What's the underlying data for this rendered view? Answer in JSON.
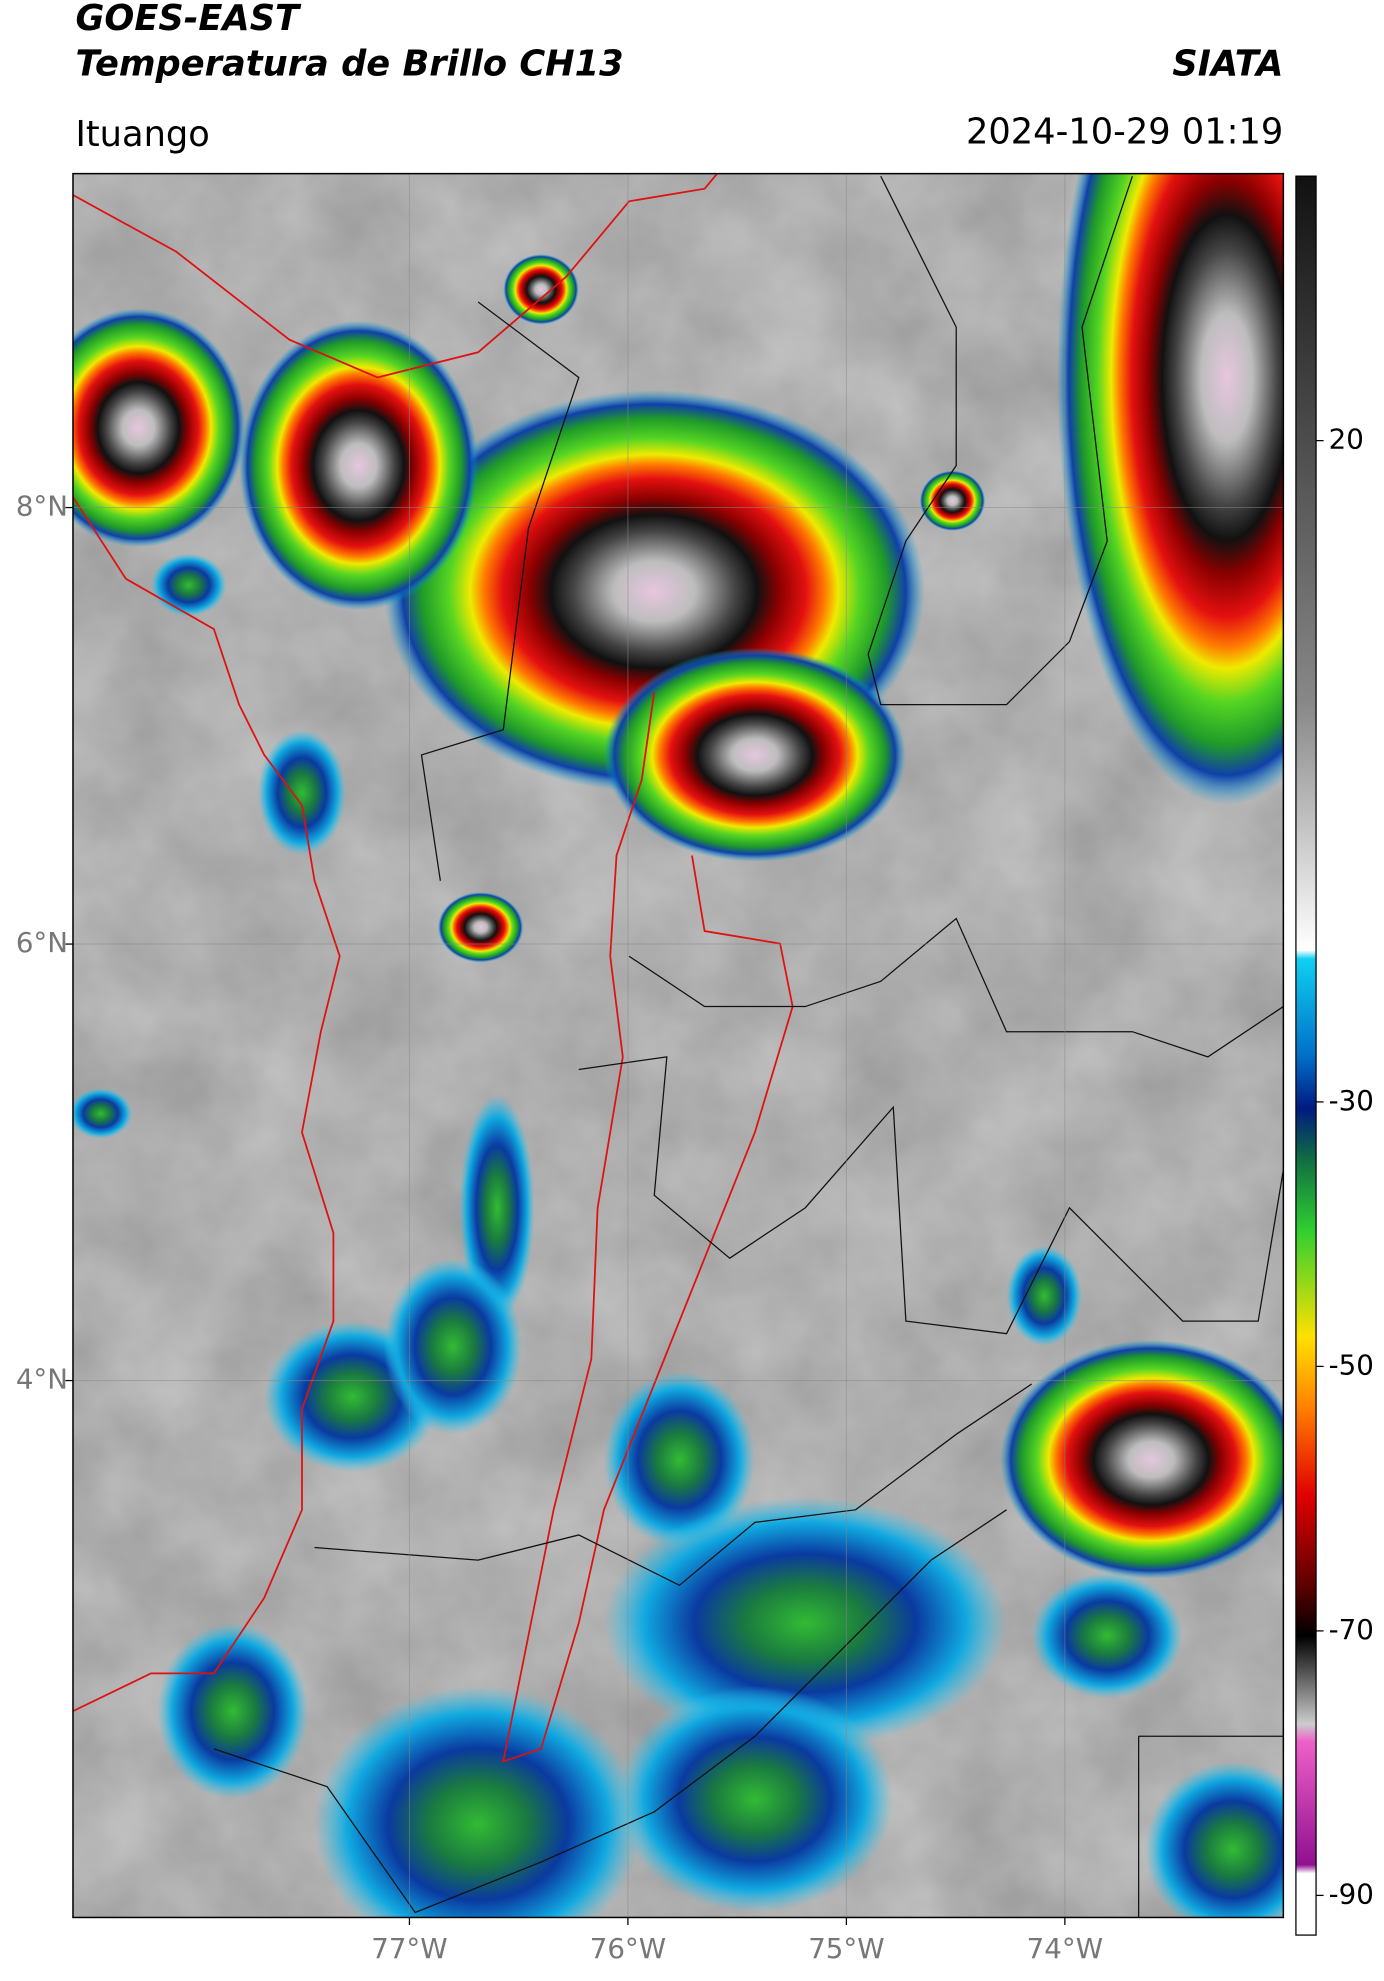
{
  "header": {
    "title": "GOES-EAST",
    "subtitle": "Temperatura de Brillo CH13",
    "source": "SIATA",
    "location": "Ituango",
    "datetime": "2024-10-29 01:19"
  },
  "map": {
    "xlim": [
      -78.54,
      -73.0
    ],
    "ylim": [
      1.54,
      9.53
    ],
    "xticks": [
      {
        "value": -77,
        "label": "77°W"
      },
      {
        "value": -76,
        "label": "76°W"
      },
      {
        "value": -75,
        "label": "75°W"
      },
      {
        "value": -74,
        "label": "74°W"
      }
    ],
    "yticks": [
      {
        "value": 8,
        "label": "8°N"
      },
      {
        "value": 6,
        "label": "6°N"
      },
      {
        "value": 4,
        "label": "4°N"
      }
    ],
    "grid": true
  },
  "colorbar": {
    "lim": [
      -93,
      40
    ],
    "ticks": [
      20,
      -30,
      -50,
      -70,
      -90
    ]
  }
}
